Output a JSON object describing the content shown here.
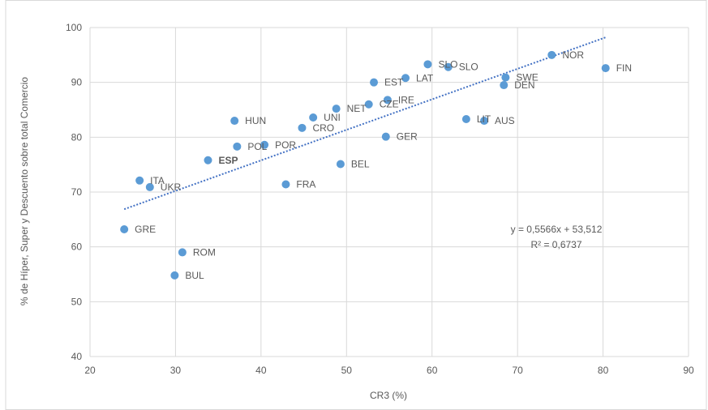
{
  "chart_data": {
    "type": "scatter",
    "title": "",
    "xlabel": "CR3 (%)",
    "ylabel": "% de Híper, Super y Descuento sobre total Comercio",
    "xlim": [
      20,
      90
    ],
    "ylim": [
      40,
      100
    ],
    "xticks": [
      20,
      30,
      40,
      50,
      60,
      70,
      80,
      90
    ],
    "yticks": [
      40,
      50,
      60,
      70,
      80,
      90,
      100
    ],
    "grid": true,
    "legend": "none",
    "point_color": "#5b9bd5",
    "trendline_color": "#4472c4",
    "points": [
      {
        "label": "GRE",
        "x": 24.0,
        "y": 63.2
      },
      {
        "label": "ITA",
        "x": 25.8,
        "y": 72.1
      },
      {
        "label": "UKR",
        "x": 27.0,
        "y": 70.9
      },
      {
        "label": "ROM",
        "x": 30.8,
        "y": 59.0
      },
      {
        "label": "BUL",
        "x": 29.9,
        "y": 54.8
      },
      {
        "label": "ESP",
        "x": 33.8,
        "y": 75.8,
        "bold": true
      },
      {
        "label": "HUN",
        "x": 36.9,
        "y": 83.0
      },
      {
        "label": "POL",
        "x": 37.2,
        "y": 78.3
      },
      {
        "label": "POR",
        "x": 40.4,
        "y": 78.6
      },
      {
        "label": "FRA",
        "x": 42.9,
        "y": 71.4
      },
      {
        "label": "CRO",
        "x": 44.8,
        "y": 81.7
      },
      {
        "label": "UNI",
        "x": 46.1,
        "y": 83.6
      },
      {
        "label": "NET",
        "x": 48.8,
        "y": 85.2
      },
      {
        "label": "BEL",
        "x": 49.3,
        "y": 75.1
      },
      {
        "label": "CZE",
        "x": 52.6,
        "y": 86.0
      },
      {
        "label": "EST",
        "x": 53.2,
        "y": 90.0
      },
      {
        "label": "GER",
        "x": 54.6,
        "y": 80.1
      },
      {
        "label": "IRE",
        "x": 54.8,
        "y": 86.8
      },
      {
        "label": "LAT",
        "x": 56.9,
        "y": 90.8
      },
      {
        "label": "SLO",
        "x": 59.5,
        "y": 93.3
      },
      {
        "label": "SLO",
        "x": 61.9,
        "y": 92.8
      },
      {
        "label": "LIT",
        "x": 64.0,
        "y": 83.3
      },
      {
        "label": "AUS",
        "x": 66.1,
        "y": 83.0
      },
      {
        "label": "SWE",
        "x": 68.6,
        "y": 90.9
      },
      {
        "label": "DEN",
        "x": 68.4,
        "y": 89.5
      },
      {
        "label": "NOR",
        "x": 74.0,
        "y": 95.0
      },
      {
        "label": "FIN",
        "x": 80.3,
        "y": 92.6
      }
    ],
    "trendline": {
      "slope": 0.5566,
      "intercept": 53.512,
      "x_range": [
        24.0,
        80.3
      ],
      "equation_text": "y = 0,5566x + 53,512",
      "r2_text": "R² = 0,6737"
    }
  }
}
